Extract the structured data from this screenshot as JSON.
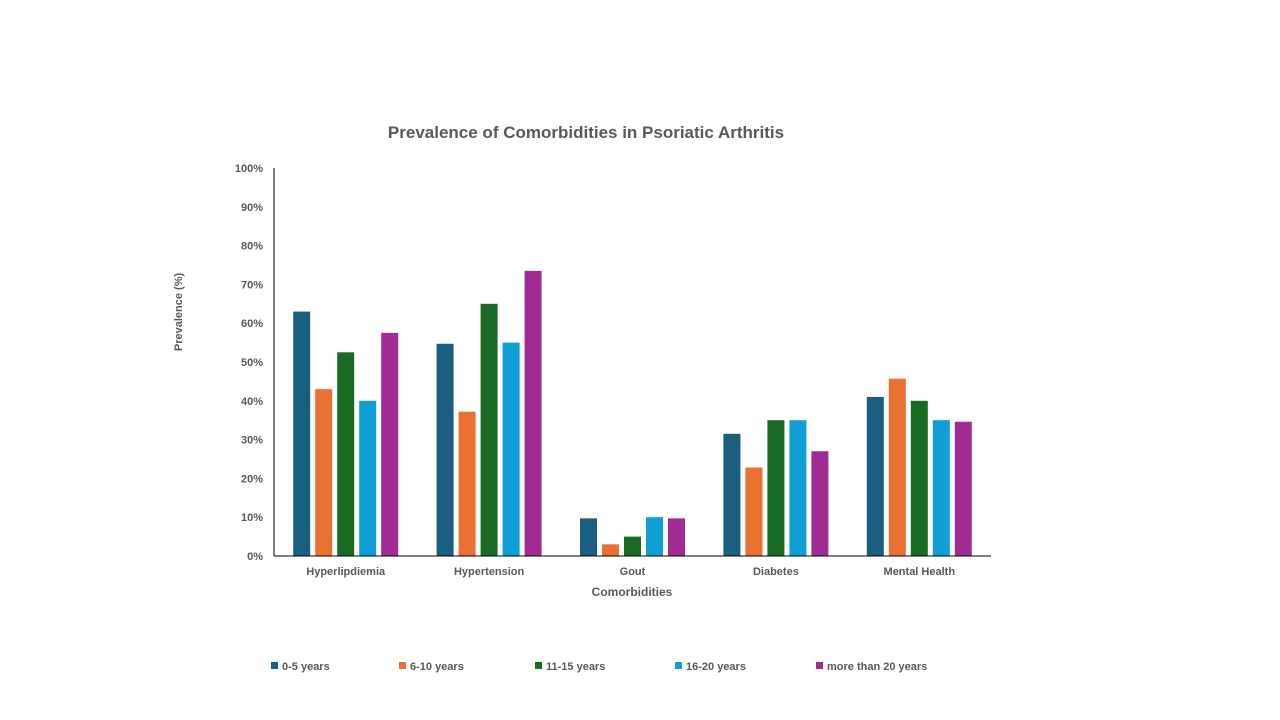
{
  "chart_data": {
    "type": "bar",
    "title": "Prevalence of Comorbidities in Psoriatic Arthritis",
    "xlabel": "Comorbidities",
    "ylabel": "Prevalence (%)",
    "ylim": [
      0,
      100
    ],
    "yticks": [
      "0%",
      "10%",
      "20%",
      "30%",
      "40%",
      "50%",
      "60%",
      "70%",
      "80%",
      "90%",
      "100%"
    ],
    "categories": [
      "Hyperlipdiemia",
      "Hypertension",
      "Gout",
      "Diabetes",
      "Mental Health"
    ],
    "series": [
      {
        "name": "0-5 years",
        "color": "#1A5E80",
        "values": [
          63,
          54.7,
          9.7,
          31.5,
          41
        ]
      },
      {
        "name": "6-10 years",
        "color": "#E97132",
        "values": [
          43,
          37.2,
          3,
          22.8,
          45.7
        ]
      },
      {
        "name": "11-15 years",
        "color": "#196B24",
        "values": [
          52.5,
          65,
          5,
          35,
          40
        ]
      },
      {
        "name": "16-20 years",
        "color": "#0F9ED5",
        "values": [
          40,
          55,
          10,
          35,
          35
        ]
      },
      {
        "name": "more than 20 years",
        "color": "#A02B93",
        "values": [
          57.5,
          73.5,
          9.7,
          27,
          34.6
        ]
      }
    ],
    "grid": false,
    "legend_position": "bottom"
  }
}
